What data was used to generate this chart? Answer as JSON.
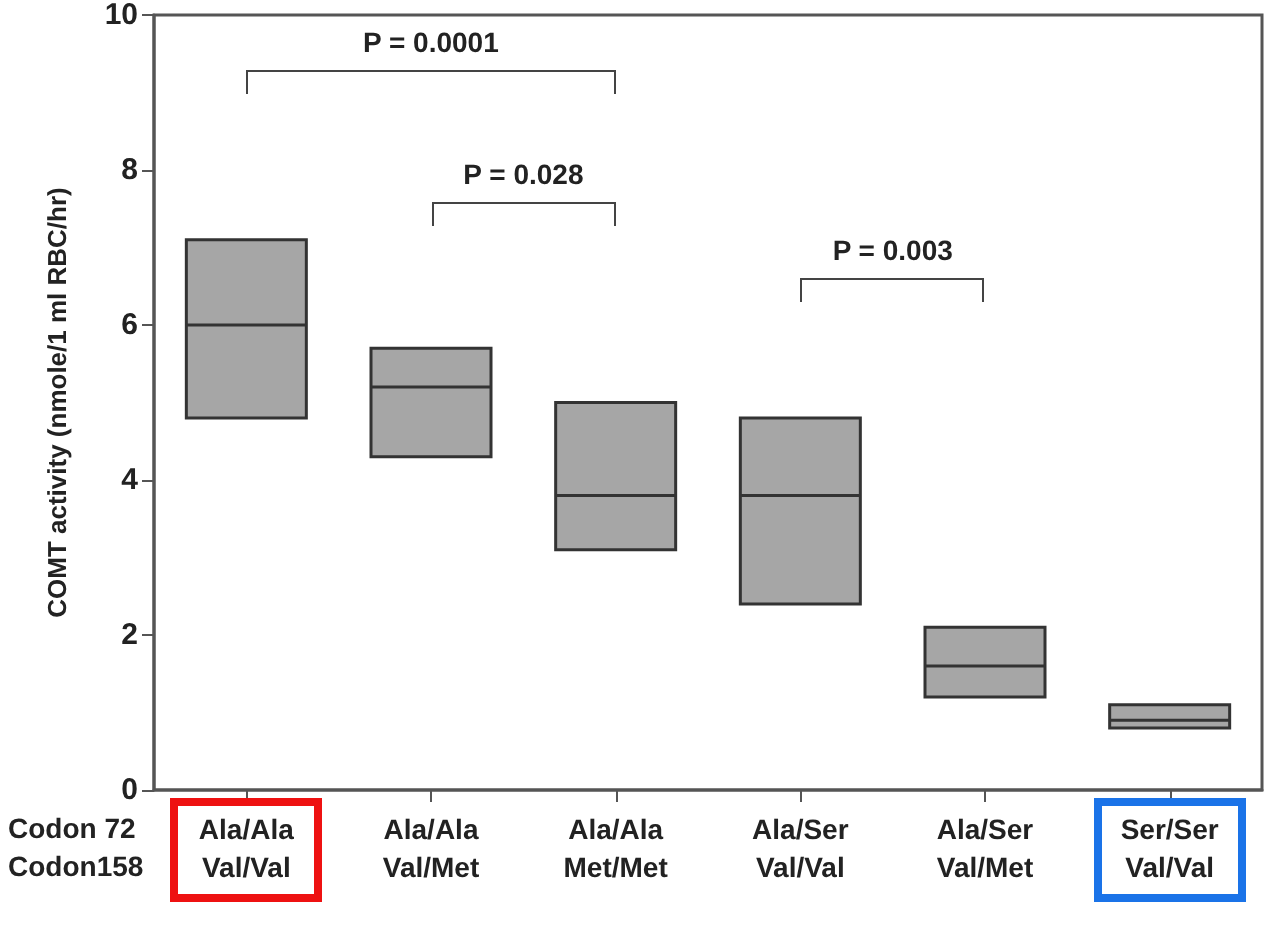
{
  "chart_data": {
    "type": "box",
    "ylabel": "COMT activity (nmole/1 ml RBC/hr)",
    "categories": [
      "Ala/Ala\nVal/Val",
      "Ala/Ala\nVal/Met",
      "Ala/Ala\nMet/Met",
      "Ala/Ser\nVal/Val",
      "Ala/Ser\nVal/Met",
      "Ser/Ser\nVal/Val"
    ],
    "boxes": [
      {
        "low": 4.8,
        "q1": 4.8,
        "median": 6.0,
        "q3": 7.1,
        "high": 7.1
      },
      {
        "low": 4.3,
        "q1": 4.3,
        "median": 5.2,
        "q3": 5.7,
        "high": 5.7
      },
      {
        "low": 3.1,
        "q1": 3.1,
        "median": 3.8,
        "q3": 5.0,
        "high": 5.0
      },
      {
        "low": 2.4,
        "q1": 2.4,
        "median": 3.8,
        "q3": 4.8,
        "high": 4.8
      },
      {
        "low": 1.2,
        "q1": 1.2,
        "median": 1.6,
        "q3": 2.1,
        "high": 2.1
      },
      {
        "low": 0.8,
        "q1": 0.8,
        "median": 0.9,
        "q3": 1.1,
        "high": 1.1
      }
    ],
    "color": "#a6a6a6",
    "ylim": [
      0,
      10
    ],
    "yticks": [
      0,
      2,
      4,
      6,
      8,
      10
    ],
    "grid": false,
    "annotations": [
      "P = 0.0001",
      "P = 0.028",
      "P = 0.003",
      "Codon 72",
      "Codon158"
    ]
  }
}
